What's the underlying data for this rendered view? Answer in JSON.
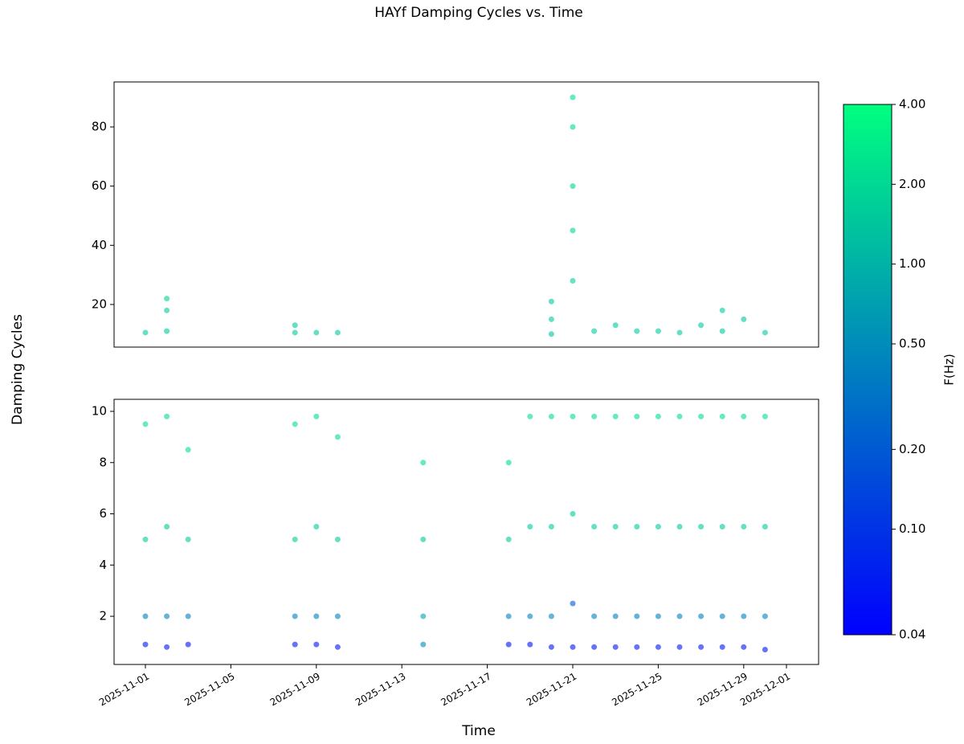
{
  "title": "HAYf Damping Cycles vs. Time",
  "ylabel": "Damping Cycles",
  "xlabel": "Time",
  "colorbar": {
    "label": "F(Hz)",
    "log": true,
    "lim": [
      0.04,
      4
    ],
    "colors": [
      "#0000ff",
      "#00ff80"
    ],
    "ticks": [
      {
        "value": 0.04,
        "label": "0.04"
      },
      {
        "value": 0.1,
        "label": "0.10"
      },
      {
        "value": 0.2,
        "label": "0.20"
      },
      {
        "value": 0.5,
        "label": "0.50"
      },
      {
        "value": 1,
        "label": "1.00"
      },
      {
        "value": 2,
        "label": "2.00"
      },
      {
        "value": 4,
        "label": "4.00"
      }
    ]
  },
  "chart_data": [
    {
      "type": "scatter",
      "xlim": [
        "2025-10-30T12:49",
        "2025-12-02T12:06"
      ],
      "ylim": [
        5.6,
        95.2
      ],
      "yticks": [
        20,
        40,
        60,
        80
      ],
      "x": [
        "2025-11-01",
        "2025-11-02",
        "2025-11-02",
        "2025-11-02",
        "2025-11-08",
        "2025-11-08",
        "2025-11-09",
        "2025-11-10",
        "2025-11-20",
        "2025-11-20",
        "2025-11-20",
        "2025-11-21",
        "2025-11-21",
        "2025-11-21",
        "2025-11-21",
        "2025-11-21",
        "2025-11-22",
        "2025-11-23",
        "2025-11-24",
        "2025-11-25",
        "2025-11-26",
        "2025-11-27",
        "2025-11-28",
        "2025-11-28",
        "2025-11-29",
        "2025-11-30"
      ],
      "y": [
        10.5,
        11,
        18,
        22,
        10.5,
        13,
        10.5,
        10.5,
        10,
        15,
        21,
        90,
        80,
        60,
        45,
        28,
        11,
        13,
        11,
        11,
        10.5,
        13,
        11,
        18,
        15,
        10.5
      ],
      "c": [
        1.5,
        1.5,
        1.6,
        1.8,
        1.5,
        1.6,
        1.5,
        1.5,
        1.4,
        1.5,
        1.6,
        2.2,
        2.0,
        1.8,
        1.8,
        1.7,
        1.5,
        1.5,
        1.5,
        1.5,
        1.5,
        1.5,
        1.5,
        1.6,
        1.6,
        1.5
      ]
    },
    {
      "type": "scatter",
      "xlim": [
        "2025-10-30T12:49",
        "2025-12-02T12:06"
      ],
      "ylim": [
        0.12,
        10.47
      ],
      "yticks": [
        2,
        4,
        6,
        8,
        10
      ],
      "xticks": [
        "2025-11-01",
        "2025-11-05",
        "2025-11-09",
        "2025-11-13",
        "2025-11-17",
        "2025-11-21",
        "2025-11-25",
        "2025-11-29",
        "2025-12-01"
      ],
      "x": [
        "2025-11-01",
        "2025-11-01",
        "2025-11-01",
        "2025-11-01",
        "2025-11-02",
        "2025-11-02",
        "2025-11-02",
        "2025-11-02",
        "2025-11-03",
        "2025-11-03",
        "2025-11-03",
        "2025-11-03",
        "2025-11-08",
        "2025-11-08",
        "2025-11-08",
        "2025-11-08",
        "2025-11-09",
        "2025-11-09",
        "2025-11-09",
        "2025-11-09",
        "2025-11-10",
        "2025-11-10",
        "2025-11-10",
        "2025-11-10",
        "2025-11-14",
        "2025-11-14",
        "2025-11-14",
        "2025-11-14",
        "2025-11-18",
        "2025-11-18",
        "2025-11-18",
        "2025-11-18",
        "2025-11-19",
        "2025-11-19",
        "2025-11-19",
        "2025-11-19",
        "2025-11-20",
        "2025-11-20",
        "2025-11-20",
        "2025-11-20",
        "2025-11-21",
        "2025-11-21",
        "2025-11-21",
        "2025-11-21",
        "2025-11-22",
        "2025-11-22",
        "2025-11-22",
        "2025-11-22",
        "2025-11-23",
        "2025-11-23",
        "2025-11-23",
        "2025-11-23",
        "2025-11-24",
        "2025-11-24",
        "2025-11-24",
        "2025-11-24",
        "2025-11-25",
        "2025-11-25",
        "2025-11-25",
        "2025-11-25",
        "2025-11-26",
        "2025-11-26",
        "2025-11-26",
        "2025-11-26",
        "2025-11-27",
        "2025-11-27",
        "2025-11-27",
        "2025-11-27",
        "2025-11-28",
        "2025-11-28",
        "2025-11-28",
        "2025-11-28",
        "2025-11-29",
        "2025-11-29",
        "2025-11-29",
        "2025-11-29",
        "2025-11-30",
        "2025-11-30",
        "2025-11-30",
        "2025-11-30"
      ],
      "y": [
        0.9,
        2,
        5,
        9.5,
        0.8,
        2,
        5.5,
        9.8,
        0.9,
        2,
        5,
        8.5,
        0.9,
        2,
        5,
        9.5,
        0.9,
        2,
        5.5,
        9.8,
        0.8,
        2,
        5,
        9,
        0.9,
        2,
        5,
        8,
        0.9,
        2,
        5,
        8,
        0.9,
        2,
        5.5,
        9.8,
        0.8,
        2,
        5.5,
        9.8,
        0.8,
        2.5,
        6,
        9.8,
        0.8,
        2,
        5.5,
        9.8,
        0.8,
        2,
        5.5,
        9.8,
        0.8,
        2,
        5.5,
        9.8,
        0.8,
        2,
        5.5,
        9.8,
        0.8,
        2,
        5.5,
        9.8,
        0.8,
        2,
        5.5,
        9.8,
        0.8,
        2,
        5.5,
        9.8,
        0.8,
        2,
        5.5,
        9.8,
        0.7,
        2,
        5.5,
        9.8
      ],
      "c": [
        0.06,
        0.4,
        1.5,
        2.2,
        0.06,
        0.4,
        1.5,
        2.2,
        0.06,
        0.4,
        1.5,
        2.2,
        0.06,
        0.4,
        1.5,
        2.2,
        0.06,
        0.4,
        1.5,
        2.2,
        0.06,
        0.4,
        1.5,
        2.2,
        0.5,
        0.8,
        1.5,
        2.2,
        0.06,
        0.4,
        1.5,
        2.2,
        0.06,
        0.4,
        1.5,
        2.2,
        0.06,
        0.4,
        1.5,
        2.2,
        0.06,
        0.2,
        1.5,
        2.2,
        0.06,
        0.4,
        1.5,
        2.2,
        0.06,
        0.4,
        1.5,
        2.2,
        0.06,
        0.4,
        1.5,
        2.2,
        0.06,
        0.4,
        1.5,
        2.2,
        0.06,
        0.4,
        1.5,
        2.2,
        0.06,
        0.4,
        1.5,
        2.2,
        0.06,
        0.4,
        1.5,
        2.2,
        0.06,
        0.4,
        1.5,
        2.2,
        0.06,
        0.4,
        1.5,
        2.2
      ]
    }
  ]
}
